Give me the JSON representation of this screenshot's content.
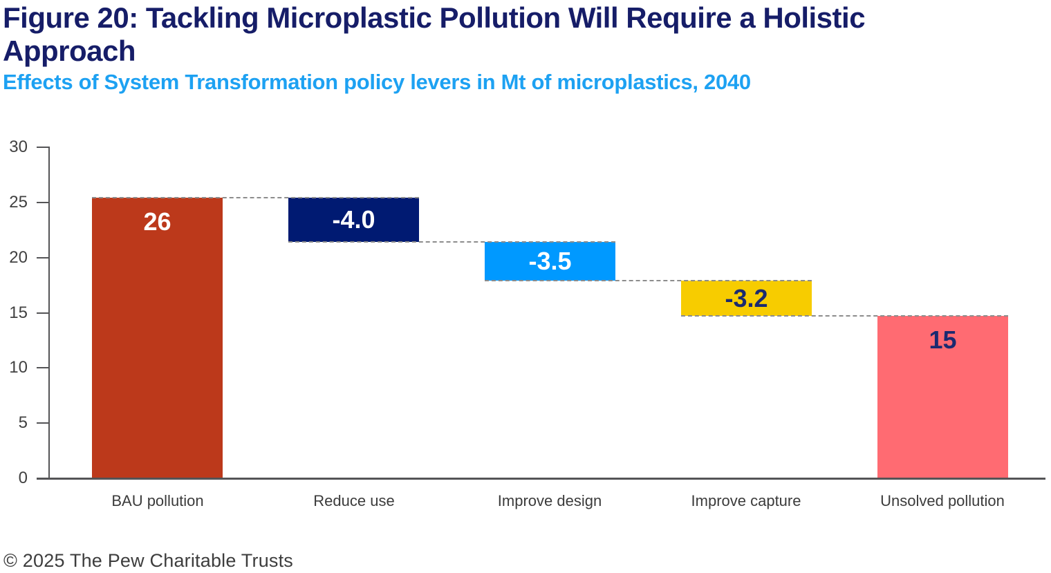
{
  "header": {
    "title_line1": "Figure 20: Tackling Microplastic Pollution Will Require a Holistic",
    "title_line2": "Approach",
    "subtitle": "Effects of System Transformation policy levers in Mt of microplastics, 2040"
  },
  "footer": {
    "copyright": "© 2025 The Pew Charitable Trusts"
  },
  "colors": {
    "title_navy": "#161d68",
    "subtitle_blue": "#1da1f2",
    "axis_gray": "#545456",
    "connector_gray": "#8c8c8c",
    "tick_text": "#414141",
    "category_text": "#3b3b3b",
    "footer_text": "#3d3d3d"
  },
  "chart_data": {
    "type": "waterfall",
    "title": "Figure 20: Tackling Microplastic Pollution Will Require a Holistic Approach",
    "subtitle": "Effects of System Transformation policy levers in Mt of microplastics, 2040",
    "unit": "Mt of microplastics",
    "year": "2040",
    "ylim": [
      0,
      30
    ],
    "yticks": [
      0,
      5,
      10,
      15,
      20,
      25,
      30
    ],
    "grid": false,
    "legend": false,
    "categories": [
      "BAU pollution",
      "Reduce use",
      "Improve design",
      "Improve capture",
      "Unsolved pollution"
    ],
    "values": [
      26,
      -4.0,
      -3.5,
      -3.2,
      15
    ],
    "bars": [
      {
        "category": "BAU pollution",
        "label": "26",
        "value": 26,
        "start": 0,
        "end": 25.4,
        "color": "#bc391b",
        "label_color": "#ffffff"
      },
      {
        "category": "Reduce use",
        "label": "-4.0",
        "value": -4.0,
        "start": 25.4,
        "end": 21.4,
        "color": "#001a72",
        "label_color": "#ffffff"
      },
      {
        "category": "Improve design",
        "label": "-3.5",
        "value": -3.5,
        "start": 21.4,
        "end": 17.9,
        "color": "#0099ff",
        "label_color": "#ffffff"
      },
      {
        "category": "Improve capture",
        "label": "-3.2",
        "value": -3.2,
        "start": 17.9,
        "end": 14.7,
        "color": "#f7cc00",
        "label_color": "#1b2a70"
      },
      {
        "category": "Unsolved pollution",
        "label": "15",
        "value": 15,
        "start": 14.7,
        "end": 0,
        "color": "#ff6b72",
        "label_color": "#1b2a70"
      }
    ],
    "connector_style": "dashed"
  }
}
